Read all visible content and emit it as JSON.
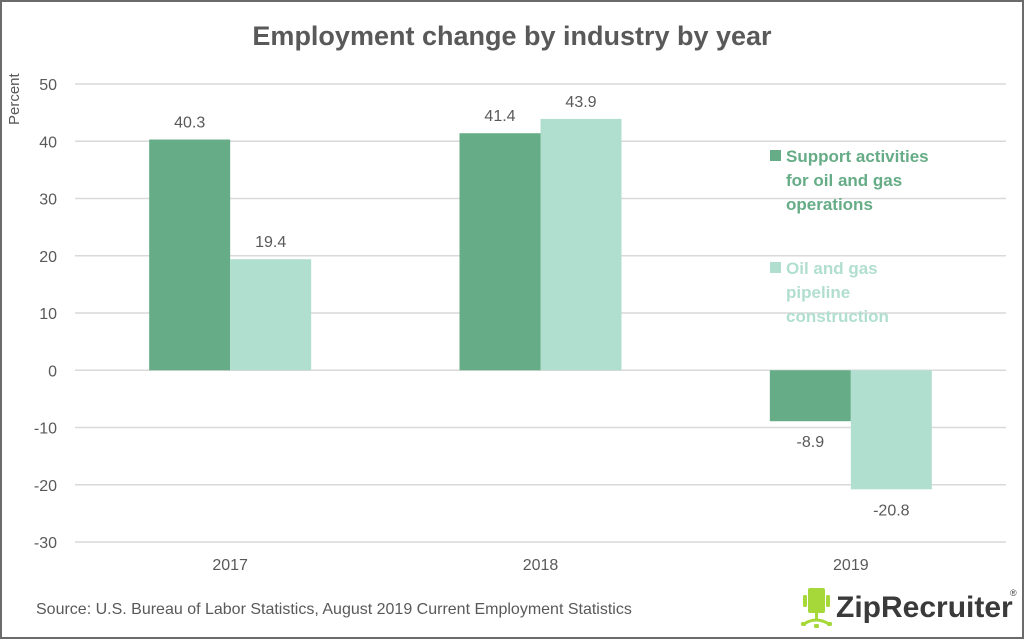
{
  "chart_data": {
    "type": "bar",
    "title": "Employment change by industry by year",
    "xlabel": "",
    "ylabel": "Percent",
    "ylim": [
      -30,
      50
    ],
    "yticks": [
      50,
      40,
      30,
      20,
      10,
      0,
      -10,
      -20,
      -30
    ],
    "ytick_labels": [
      "50",
      "40",
      "30",
      "20",
      "10",
      "0",
      "-10",
      "-20",
      "-30"
    ],
    "grid": true,
    "categories": [
      "2017",
      "2018",
      "2019"
    ],
    "series": [
      {
        "name": "Support activities for oil and gas operations",
        "legend_lines": [
          "Support activities",
          "for oil and gas",
          "operations"
        ],
        "color": "#66ac86",
        "values": [
          40.3,
          41.4,
          -8.9
        ],
        "labels": [
          "40.3",
          "41.4",
          "-8.9"
        ]
      },
      {
        "name": "Oil and gas pipeline construction",
        "legend_lines": [
          "Oil and gas",
          "pipeline",
          "construction"
        ],
        "color": "#b1dfcf",
        "values": [
          19.4,
          43.9,
          -20.8
        ],
        "labels": [
          "19.4",
          "43.9",
          "-20.8"
        ]
      }
    ],
    "legend_position": "right",
    "source": "Source: U.S. Bureau of Labor Statistics, August 2019 Current Employment Statistics"
  },
  "logo": {
    "text": "ZipRecruiter",
    "registered_mark": "®",
    "icon": "chair-icon",
    "icon_color": "#a6d83a"
  }
}
